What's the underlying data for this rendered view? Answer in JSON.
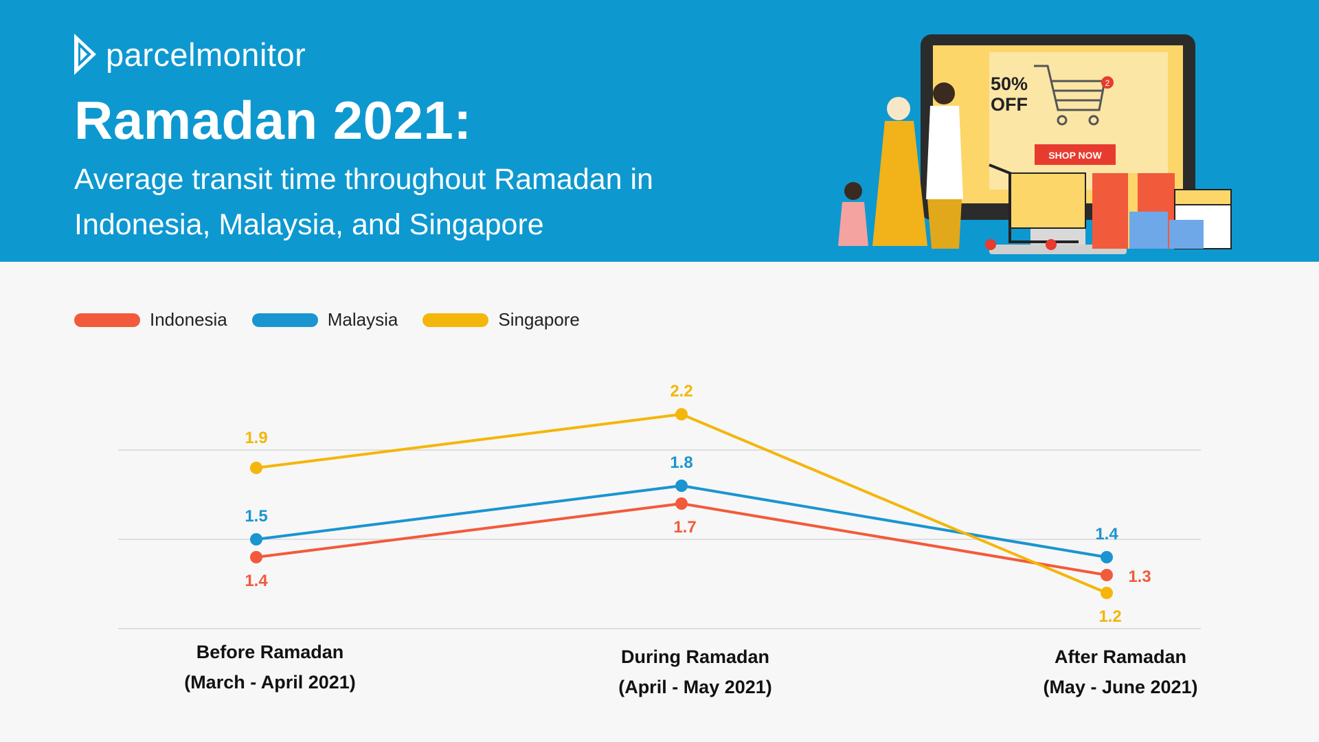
{
  "brand": {
    "name": "parcelmonitor"
  },
  "header": {
    "title": "Ramadan 2021:",
    "subtitle": "Average transit time throughout Ramadan in Indonesia, Malaysia, and Singapore"
  },
  "illustration": {
    "discount": "50% OFF",
    "discount_line1": "50%",
    "discount_line2": "OFF",
    "cta": "SHOP NOW",
    "cart_badge": "2"
  },
  "colors": {
    "header_bg": "#0e98d0",
    "indonesia": "#f25a3c",
    "malaysia": "#1a95cf",
    "singapore": "#f4b60a"
  },
  "chart_data": {
    "type": "line",
    "title": "Average transit time throughout Ramadan in Indonesia, Malaysia, and Singapore",
    "categories": [
      "Before Ramadan (March - April 2021)",
      "During Ramadan (April - May 2021)",
      "After Ramadan (May - June 2021)"
    ],
    "category_lines": [
      [
        "Before Ramadan",
        "(March - April 2021)"
      ],
      [
        "During Ramadan",
        "(April - May 2021)"
      ],
      [
        "After Ramadan",
        "(May - June 2021)"
      ]
    ],
    "series": [
      {
        "name": "Indonesia",
        "color": "#f25a3c",
        "values": [
          1.4,
          1.7,
          1.3
        ]
      },
      {
        "name": "Malaysia",
        "color": "#1a95cf",
        "values": [
          1.5,
          1.8,
          1.4
        ]
      },
      {
        "name": "Singapore",
        "color": "#f4b60a",
        "values": [
          1.9,
          2.2,
          1.2
        ]
      }
    ],
    "value_labels": [
      [
        "1.4",
        "1.7",
        "1.3"
      ],
      [
        "1.5",
        "1.8",
        "1.4"
      ],
      [
        "1.9",
        "2.2",
        "1.2"
      ]
    ],
    "ylim": [
      1.0,
      2.0
    ],
    "gridlines": [
      1.0,
      1.5,
      2.0
    ],
    "legend_position": "top-left",
    "xlabel": "",
    "ylabel": ""
  }
}
